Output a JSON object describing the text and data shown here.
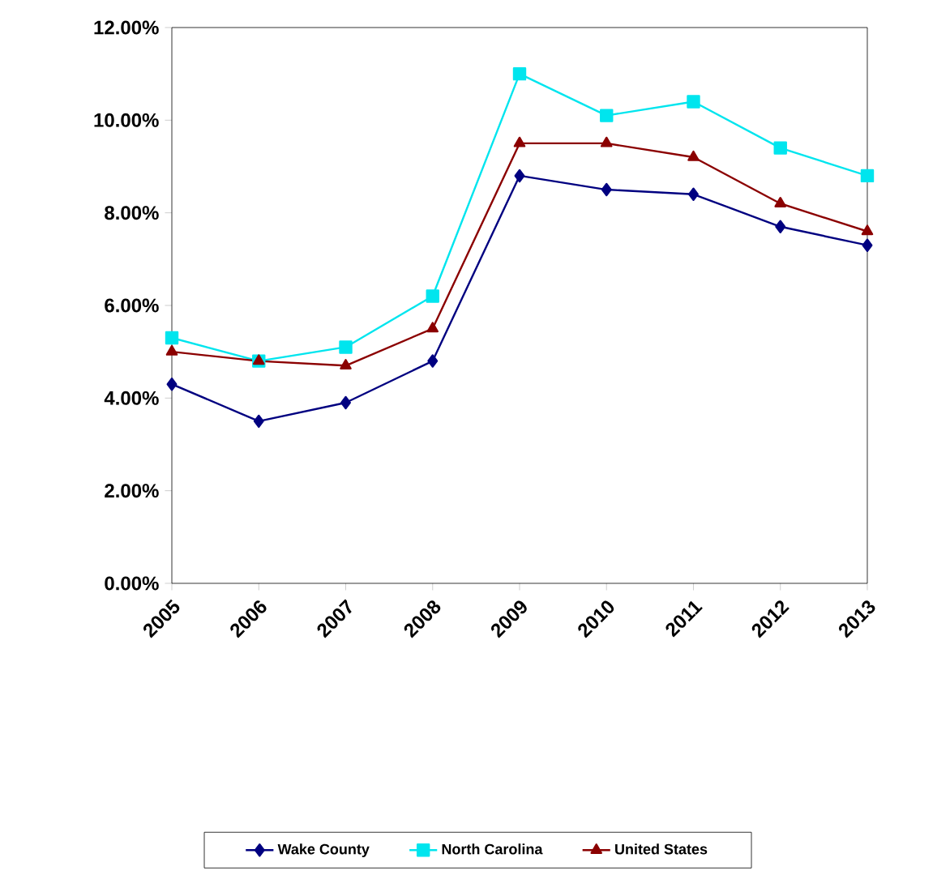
{
  "chart_data": {
    "type": "line",
    "categories": [
      "2005",
      "2006",
      "2007",
      "2008",
      "2009",
      "2010",
      "2011",
      "2012",
      "2013"
    ],
    "series": [
      {
        "name": "Wake County",
        "color": "#000080",
        "marker": "diamond",
        "values": [
          4.3,
          3.5,
          3.9,
          4.8,
          8.8,
          8.5,
          8.4,
          7.7,
          7.3
        ]
      },
      {
        "name": "North Carolina",
        "color": "#00e5ee",
        "marker": "square",
        "values": [
          5.3,
          4.8,
          5.1,
          6.2,
          11.0,
          10.1,
          10.4,
          9.4,
          8.8
        ]
      },
      {
        "name": "United States",
        "color": "#8b0000",
        "marker": "triangle",
        "values": [
          5.0,
          4.8,
          4.7,
          5.5,
          9.5,
          9.5,
          9.2,
          8.2,
          7.6
        ]
      }
    ],
    "ylim": [
      0,
      12
    ],
    "yticks": [
      {
        "value": 0,
        "label": "0.00%"
      },
      {
        "value": 2,
        "label": "2.00%"
      },
      {
        "value": 4,
        "label": "4.00%"
      },
      {
        "value": 6,
        "label": "6.00%"
      },
      {
        "value": 8,
        "label": "8.00%"
      },
      {
        "value": 10,
        "label": "10.00%"
      },
      {
        "value": 12,
        "label": "12.00%"
      }
    ],
    "grid": false,
    "legend": "bottom",
    "line_style": "solid"
  }
}
